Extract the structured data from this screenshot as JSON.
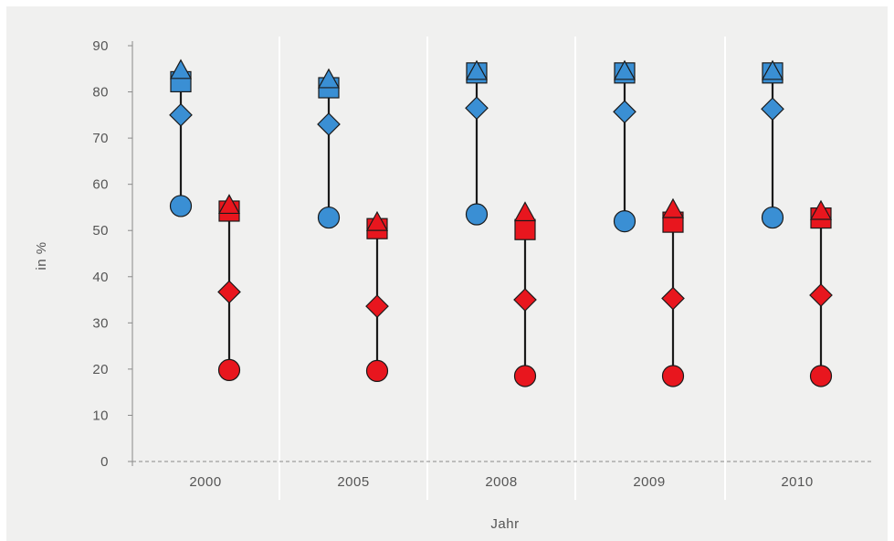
{
  "chart_data": {
    "type": "scatter",
    "xlabel": "Jahr",
    "ylabel": "in %",
    "ylim": [
      0,
      90
    ],
    "yticks": [
      "0",
      "10",
      "20",
      "30",
      "40",
      "50",
      "60",
      "70",
      "80",
      "90"
    ],
    "categories": [
      "2000",
      "2005",
      "2008",
      "2009",
      "2010"
    ],
    "groups": [
      {
        "color": "#3a8fd4",
        "points": [
          {
            "circle": 55.3,
            "diamond": 75,
            "square": 82.2,
            "triangle": 84.5
          },
          {
            "circle": 52.8,
            "diamond": 73,
            "square": 80.9,
            "triangle": 82.5
          },
          {
            "circle": 53.5,
            "diamond": 76.5,
            "square": 84.1,
            "triangle": 84.3
          },
          {
            "circle": 52,
            "diamond": 75.7,
            "square": 84.1,
            "triangle": 84.3
          },
          {
            "circle": 52.8,
            "diamond": 76.3,
            "square": 84.1,
            "triangle": 84.3
          }
        ]
      },
      {
        "color": "#e8161e",
        "points": [
          {
            "circle": 19.8,
            "diamond": 36.7,
            "square": 54.2,
            "triangle": 55.3
          },
          {
            "circle": 19.6,
            "diamond": 33.6,
            "square": 50.4,
            "triangle": 51.6
          },
          {
            "circle": 18.5,
            "diamond": 35,
            "square": 50.2,
            "triangle": 53.7
          },
          {
            "circle": 18.5,
            "diamond": 35.3,
            "square": 51.8,
            "triangle": 54.4
          },
          {
            "circle": 18.5,
            "diamond": 36,
            "square": 52.7,
            "triangle": 54
          }
        ]
      }
    ],
    "background": "#f0f0ef",
    "grid": false,
    "reference_line": 0
  }
}
